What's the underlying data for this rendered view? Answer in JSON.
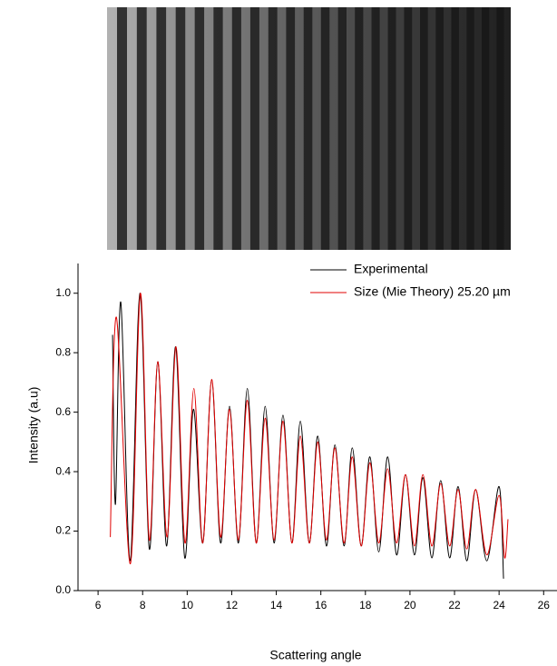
{
  "chart_data": {
    "type": "line",
    "xlabel": "Scattering angle",
    "ylabel": "Intensity (a.u)",
    "xlim": [
      5.1,
      26.6
    ],
    "ylim": [
      0,
      1.1
    ],
    "xticks": [
      6,
      8,
      10,
      12,
      14,
      16,
      18,
      20,
      22,
      24,
      26
    ],
    "yticks": [
      {
        "value": 0,
        "label": "0.0"
      },
      0.2,
      0.4,
      0.6,
      0.8,
      {
        "value": 1,
        "label": "1.0"
      }
    ],
    "legend": "top-right",
    "series": [
      {
        "name": "Experimental",
        "color": "#000000",
        "x": [
          6.65,
          6.78,
          7.02,
          7.44,
          7.88,
          8.3,
          8.68,
          9.08,
          9.48,
          9.89,
          10.28,
          10.7,
          11.1,
          11.5,
          11.9,
          12.3,
          12.7,
          13.1,
          13.5,
          13.9,
          14.3,
          14.7,
          15.08,
          15.48,
          15.86,
          16.25,
          16.63,
          17.04,
          17.41,
          17.81,
          18.2,
          18.6,
          19.0,
          19.4,
          19.8,
          20.2,
          20.58,
          20.98,
          21.38,
          21.78,
          22.16,
          22.55,
          22.95,
          23.45,
          24.0,
          24.2
        ],
        "values": [
          0.86,
          0.29,
          0.97,
          0.1,
          1.0,
          0.14,
          0.77,
          0.15,
          0.82,
          0.11,
          0.61,
          0.16,
          0.71,
          0.16,
          0.62,
          0.16,
          0.68,
          0.16,
          0.62,
          0.16,
          0.59,
          0.16,
          0.57,
          0.16,
          0.52,
          0.15,
          0.49,
          0.15,
          0.48,
          0.15,
          0.45,
          0.13,
          0.45,
          0.12,
          0.39,
          0.12,
          0.38,
          0.11,
          0.37,
          0.11,
          0.35,
          0.1,
          0.34,
          0.1,
          0.35,
          0.04
        ]
      },
      {
        "name": "Size (Mie Theory) 25.20 µm",
        "color": "#e00000",
        "x": [
          6.55,
          6.82,
          7.45,
          7.9,
          8.3,
          8.68,
          9.1,
          9.5,
          9.9,
          10.3,
          10.7,
          11.1,
          11.5,
          11.9,
          12.3,
          12.7,
          13.1,
          13.5,
          13.9,
          14.3,
          14.7,
          15.08,
          15.48,
          15.86,
          16.25,
          16.63,
          17.04,
          17.41,
          17.81,
          18.2,
          18.6,
          19.0,
          19.4,
          19.8,
          20.2,
          20.58,
          20.98,
          21.38,
          21.78,
          22.16,
          22.55,
          22.95,
          23.45,
          24.0,
          24.25,
          24.4
        ],
        "values": [
          0.18,
          0.92,
          0.09,
          1.0,
          0.17,
          0.77,
          0.18,
          0.82,
          0.16,
          0.68,
          0.16,
          0.71,
          0.18,
          0.61,
          0.17,
          0.64,
          0.16,
          0.58,
          0.17,
          0.57,
          0.16,
          0.52,
          0.16,
          0.5,
          0.17,
          0.48,
          0.16,
          0.45,
          0.15,
          0.43,
          0.16,
          0.41,
          0.16,
          0.39,
          0.15,
          0.39,
          0.15,
          0.36,
          0.15,
          0.34,
          0.14,
          0.34,
          0.12,
          0.32,
          0.11,
          0.24
        ]
      }
    ]
  }
}
